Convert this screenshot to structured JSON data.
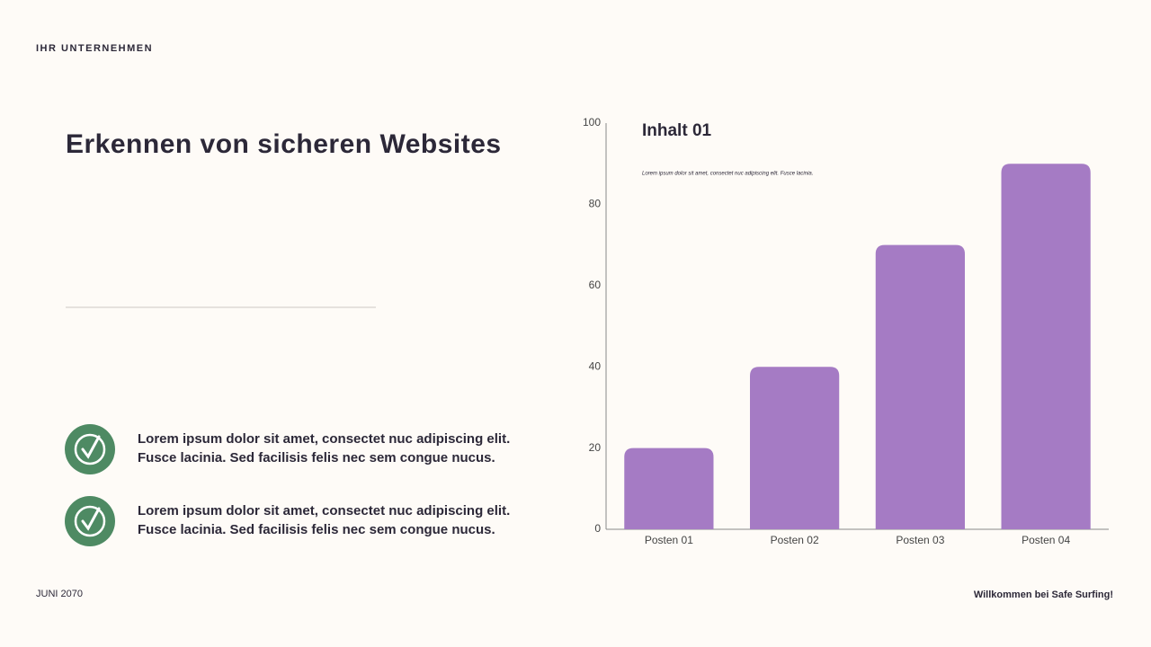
{
  "header": {
    "company": "IHR UNTERNEHMEN"
  },
  "title": "Erkennen von sicheren Websites",
  "items": [
    {
      "lines": [
        "Lorem ipsum dolor sit amet, consectet nuc adipiscing elit.",
        "Fusce lacinia. Sed facilisis felis nec sem congue nucus."
      ]
    },
    {
      "lines": [
        "Lorem ipsum dolor sit amet, consectet nuc adipiscing elit.",
        "Fusce lacinia. Sed facilisis felis nec sem congue nucus."
      ]
    }
  ],
  "footer": {
    "date": "JUNI 2070",
    "tagline": "Willkommen bei Safe Surfing!"
  },
  "chart_data": {
    "type": "bar",
    "title": "Inhalt 01",
    "subtitle": "Lorem ipsum dolor sit amet, consectet nuc adipiscing elit. Fusce lacinia.",
    "categories": [
      "Posten 01",
      "Posten 02",
      "Posten 03",
      "Posten 04"
    ],
    "values": [
      20,
      40,
      70,
      90
    ],
    "color": "#a57bc4",
    "ylim": [
      0,
      100
    ],
    "yticks": [
      0,
      20,
      40,
      60,
      80,
      100
    ],
    "grid": false
  }
}
